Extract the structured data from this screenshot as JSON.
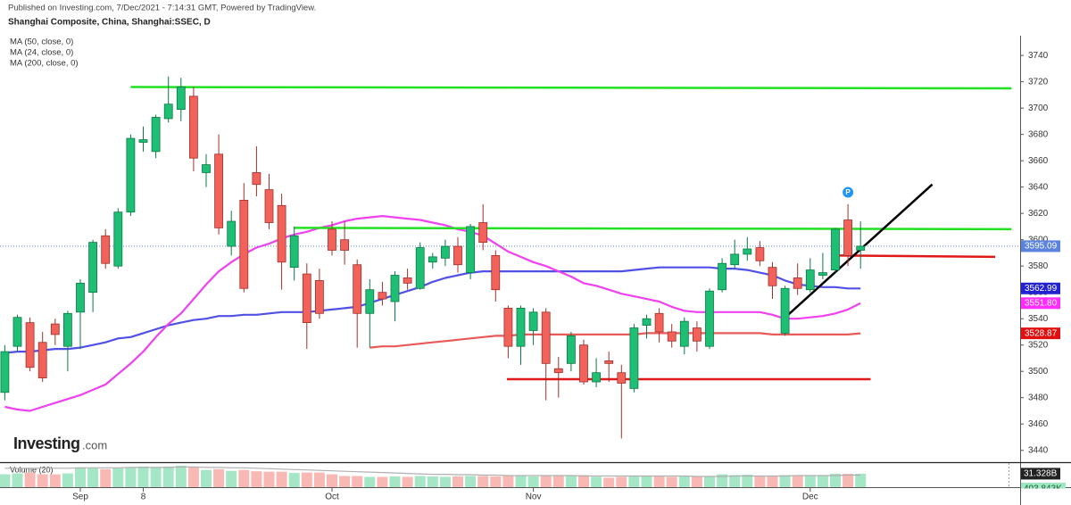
{
  "header": {
    "published": "Published on Investing.com, 7/Dec/2021 - 7:14:31 GMT, Powered by TradingView.",
    "logo": {
      "name": "Investing",
      "suffix": ".com"
    }
  },
  "chart_data": [
    {
      "type": "candlestick",
      "title": "Shanghai Composite, China, Shanghai:SSEC, D",
      "categories": [
        null,
        null,
        null,
        null,
        null,
        null,
        "Sep",
        null,
        null,
        null,
        null,
        "8",
        null,
        null,
        null,
        null,
        null,
        null,
        null,
        null,
        null,
        null,
        null,
        null,
        null,
        null,
        "Oct",
        null,
        null,
        null,
        null,
        null,
        null,
        null,
        null,
        null,
        null,
        null,
        null,
        null,
        null,
        null,
        "Nov",
        null,
        null,
        null,
        null,
        null,
        null,
        null,
        null,
        null,
        null,
        null,
        null,
        null,
        null,
        null,
        null,
        null,
        null,
        null,
        null,
        null,
        "Dec",
        null,
        null,
        null,
        null
      ],
      "open": [
        3484,
        3519,
        3537,
        3522,
        3536,
        3519,
        3545,
        3560,
        3603,
        3580,
        3621,
        3674,
        3667,
        3692,
        3699,
        3709,
        3651,
        3665,
        3595,
        3630,
        3651,
        3638,
        3626,
        3579,
        3574,
        3569,
        3608,
        3600,
        3581,
        3544,
        3560,
        3553,
        3571,
        3563,
        3583,
        3586,
        3595,
        3575,
        3613,
        3588,
        3548,
        3519,
        3531,
        3545,
        3502,
        3506,
        3520,
        3492,
        3508,
        3499,
        3487,
        3535,
        3544,
        3530,
        3519,
        3533,
        3519,
        3562,
        3581,
        3589,
        3594,
        3579,
        3529,
        3571,
        3562,
        3573,
        3577,
        3615,
        3592
      ],
      "high": [
        3520,
        3543,
        3541,
        3530,
        3540,
        3546,
        3570,
        3600,
        3608,
        3624,
        3680,
        3686,
        3695,
        3724,
        3723,
        3716,
        3665,
        3680,
        3622,
        3643,
        3671,
        3650,
        3635,
        3610,
        3582,
        3578,
        3614,
        3614,
        3585,
        3570,
        3568,
        3576,
        3578,
        3598,
        3590,
        3600,
        3602,
        3612,
        3627,
        3592,
        3550,
        3550,
        3548,
        3548,
        3511,
        3530,
        3524,
        3510,
        3515,
        3505,
        3536,
        3543,
        3548,
        3536,
        3541,
        3538,
        3563,
        3586,
        3600,
        3602,
        3599,
        3583,
        3565,
        3582,
        3586,
        3590,
        3609,
        3627,
        3614
      ],
      "low": [
        3478,
        3515,
        3500,
        3492,
        3520,
        3500,
        3517,
        3545,
        3578,
        3578,
        3618,
        3667,
        3662,
        3689,
        3690,
        3652,
        3640,
        3604,
        3588,
        3560,
        3633,
        3608,
        3562,
        3569,
        3517,
        3540,
        3588,
        3581,
        3518,
        3518,
        3550,
        3538,
        3562,
        3562,
        3578,
        3580,
        3575,
        3570,
        3592,
        3553,
        3510,
        3505,
        3520,
        3478,
        3480,
        3500,
        3490,
        3488,
        3492,
        3449,
        3484,
        3525,
        3522,
        3518,
        3513,
        3515,
        3517,
        3560,
        3578,
        3584,
        3580,
        3555,
        3527,
        3558,
        3560,
        3570,
        3575,
        3580,
        3578
      ],
      "close": [
        3515,
        3541,
        3503,
        3495,
        3528,
        3544,
        3567,
        3598,
        3582,
        3621,
        3677,
        3676,
        3693,
        3703,
        3716,
        3662,
        3657,
        3609,
        3614,
        3563,
        3642,
        3613,
        3583,
        3603,
        3537,
        3544,
        3592,
        3592,
        3544,
        3562,
        3555,
        3573,
        3567,
        3594,
        3587,
        3595,
        3581,
        3610,
        3598,
        3562,
        3519,
        3548,
        3545,
        3506,
        3499,
        3527,
        3492,
        3499,
        3506,
        3491,
        3533,
        3540,
        3530,
        3523,
        3538,
        3523,
        3561,
        3582,
        3589,
        3593,
        3584,
        3565,
        3563,
        3563,
        3577,
        3575,
        3608,
        3588,
        3595.09
      ],
      "up_color": "#1ebe74",
      "up_border": "#0b7a45",
      "down_color": "#f0625a",
      "down_border": "#a3302a",
      "last_price": 3595.09,
      "last_price_color": "#5b82dc",
      "series": [
        {
          "name": "MA (50, close, 0)",
          "color": "#5050e6",
          "values": [
            3514,
            3515,
            3515,
            3516,
            3517,
            3517,
            3518,
            3520,
            3522,
            3525,
            3526,
            3529,
            3532,
            3535,
            3537,
            3539,
            3540,
            3542,
            3542,
            3543,
            3543,
            3544,
            3545,
            3545,
            3545,
            3546,
            3547,
            3548,
            3549,
            3552,
            3555,
            3558,
            3561,
            3564,
            3568,
            3571,
            3573,
            3575,
            3576,
            3576,
            3576,
            3576,
            3576,
            3576,
            3576,
            3576,
            3576,
            3576,
            3576,
            3576,
            3577,
            3578,
            3579,
            3579,
            3579,
            3579,
            3579,
            3578,
            3578,
            3577,
            3575,
            3573,
            3569,
            3566,
            3565,
            3564,
            3564,
            3563,
            3562.99
          ],
          "last_label": 3562.99,
          "label_color": "#2222d0"
        },
        {
          "name": "MA (24, close, 0)",
          "color": "#f040f0",
          "values": [
            3473,
            3471,
            3470,
            3473,
            3476,
            3479,
            3482,
            3486,
            3490,
            3498,
            3506,
            3515,
            3526,
            3536,
            3544,
            3555,
            3566,
            3576,
            3583,
            3589,
            3594,
            3597,
            3601,
            3604,
            3606,
            3609,
            3611,
            3614,
            3616,
            3617,
            3618,
            3617,
            3616,
            3615,
            3613,
            3611,
            3608,
            3606,
            3603,
            3597,
            3591,
            3587,
            3583,
            3580,
            3576,
            3572,
            3567,
            3565,
            3562,
            3559,
            3557,
            3555,
            3553,
            3549,
            3546,
            3545,
            3545,
            3545,
            3545,
            3545,
            3545,
            3543,
            3540,
            3540,
            3541,
            3542,
            3544,
            3547,
            3551.8
          ],
          "last_label": {
            "value": 3551.8,
            "label": "3551.80"
          },
          "label_color": "#ff2cff"
        },
        {
          "name": "MA (200, close, 0)",
          "color": "#e85a5a",
          "values": [
            null,
            null,
            null,
            null,
            null,
            null,
            null,
            null,
            null,
            null,
            null,
            null,
            null,
            null,
            null,
            null,
            null,
            null,
            null,
            null,
            null,
            null,
            null,
            null,
            null,
            null,
            null,
            null,
            null,
            3518,
            3519,
            3519,
            3520,
            3521,
            3522,
            3523,
            3524,
            3525,
            3526,
            3527,
            3527,
            3528,
            3528,
            3528,
            3528,
            3528,
            3528,
            3528,
            3528,
            3528,
            3528,
            3529,
            3529,
            3529,
            3529,
            3529,
            3529,
            3529,
            3529,
            3529,
            3529,
            3528,
            3528,
            3528,
            3528,
            3528,
            3528,
            3528,
            3528.87
          ],
          "last_label": 3528.87,
          "label_color": "#e01010"
        }
      ],
      "drawings": [
        {
          "color": "#22e022",
          "x": [
            10,
            80
          ],
          "y": [
            3716,
            3715
          ]
        },
        {
          "color": "#22e022",
          "x": [
            23,
            80
          ],
          "y": [
            3609,
            3608
          ]
        },
        {
          "color": "#e01818",
          "x": [
            66.3,
            78.7
          ],
          "y": [
            3588,
            3587
          ]
        },
        {
          "color": "#e01818",
          "x": [
            39.9,
            68.8
          ],
          "y": [
            3494,
            3494
          ]
        },
        {
          "color": "#000000",
          "x": [
            61.9,
            73.7
          ],
          "y": [
            3540,
            3642
          ]
        }
      ],
      "marker": {
        "label": "P",
        "x": 67,
        "y": 3636,
        "color": "#2196f3"
      },
      "ylim": [
        3431,
        3755
      ],
      "yticks": [
        3440,
        3460,
        3480,
        3500,
        3520,
        3540,
        3560,
        3580,
        3600,
        3620,
        3640,
        3660,
        3680,
        3700,
        3720,
        3740
      ]
    },
    {
      "type": "bar",
      "title": "Volume (20)",
      "values": [
        30,
        32,
        34,
        30,
        30,
        32,
        46,
        44,
        42,
        44,
        46,
        48,
        47,
        48,
        50,
        47,
        40,
        42,
        38,
        40,
        37,
        36,
        36,
        33,
        34,
        34,
        30,
        26,
        26,
        24,
        24,
        25,
        24,
        26,
        25,
        24,
        25,
        26,
        26,
        25,
        28,
        27,
        25,
        28,
        28,
        26,
        28,
        24,
        22,
        24,
        26,
        25,
        26,
        24,
        25,
        24,
        26,
        30,
        28,
        29,
        27,
        26,
        28,
        28,
        27,
        28,
        31,
        31,
        31.328
      ],
      "last_label": {
        "value": 31.328,
        "label": "31.328B"
      },
      "ma": [
        44,
        44,
        44,
        44,
        44,
        44,
        45,
        45,
        45,
        45,
        46,
        46,
        46,
        46,
        47,
        47,
        46,
        46,
        45,
        45,
        44,
        43,
        42,
        41,
        40,
        39,
        38,
        37,
        36,
        35,
        34,
        33,
        32,
        31,
        30,
        30,
        29,
        29,
        28,
        28,
        27,
        27,
        27,
        27,
        27,
        27,
        26,
        26,
        26,
        26,
        26,
        26,
        26,
        26,
        26,
        25,
        25,
        25,
        26,
        26,
        26,
        26,
        26,
        27,
        27,
        27,
        27,
        28,
        28
      ],
      "ma_label": "403.843K",
      "up_color": "#a4e6c6",
      "down_color": "#f8b9b5",
      "ma_color": "#b0b0b0",
      "ylim": [
        0,
        54
      ]
    }
  ]
}
